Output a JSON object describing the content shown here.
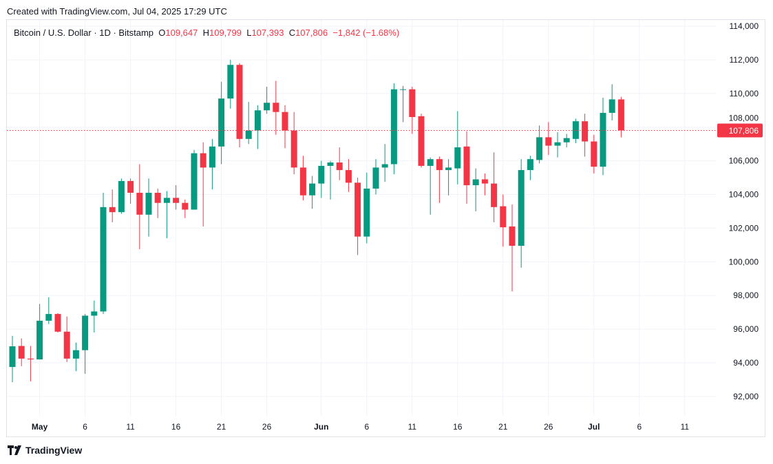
{
  "header": {
    "created": "Created with TradingView.com, Jul 04, 2025 17:29 UTC"
  },
  "legend": {
    "symbol": "Bitcoin / U.S. Dollar · 1D · Bitstamp",
    "o_label": "O",
    "o": "109,647",
    "h_label": "H",
    "h": "109,799",
    "l_label": "L",
    "l": "107,393",
    "c_label": "C",
    "c": "107,806",
    "change": "−1,842 (−1.68%)"
  },
  "footer": {
    "brand": "TradingView"
  },
  "colors": {
    "up": "#089981",
    "down": "#f23645",
    "grid": "#f0f3fa",
    "text": "#131722"
  },
  "chart_data": {
    "type": "candlestick",
    "title": "Bitcoin / U.S. Dollar · 1D · Bitstamp",
    "ylim": [
      91000,
      114500
    ],
    "grid": true,
    "y_ticks": [
      92000,
      94000,
      96000,
      98000,
      100000,
      102000,
      104000,
      106000,
      108000,
      110000,
      112000,
      114000
    ],
    "y_tick_labels": [
      "92,000",
      "94,000",
      "96,000",
      "98,000",
      "100,000",
      "102,000",
      "104,000",
      "106,000",
      "108,000",
      "110,000",
      "112,000",
      "114,000"
    ],
    "x_ticks": [
      {
        "label": "May",
        "date": "2025-05-01",
        "bold": true
      },
      {
        "label": "6",
        "date": "2025-05-06"
      },
      {
        "label": "11",
        "date": "2025-05-11"
      },
      {
        "label": "16",
        "date": "2025-05-16"
      },
      {
        "label": "21",
        "date": "2025-05-21"
      },
      {
        "label": "26",
        "date": "2025-05-26"
      },
      {
        "label": "Jun",
        "date": "2025-06-01",
        "bold": true
      },
      {
        "label": "6",
        "date": "2025-06-06"
      },
      {
        "label": "11",
        "date": "2025-06-11"
      },
      {
        "label": "16",
        "date": "2025-06-16"
      },
      {
        "label": "21",
        "date": "2025-06-21"
      },
      {
        "label": "26",
        "date": "2025-06-26"
      },
      {
        "label": "Jul",
        "date": "2025-07-01",
        "bold": true
      },
      {
        "label": "6",
        "date": "2025-07-06"
      },
      {
        "label": "11",
        "date": "2025-07-11"
      }
    ],
    "last_price": 107806,
    "last_price_label": "107,806",
    "candles": [
      {
        "d": "2025-04-28",
        "o": 93750,
        "h": 95600,
        "l": 92850,
        "c": 94980
      },
      {
        "d": "2025-04-29",
        "o": 95000,
        "h": 95450,
        "l": 93800,
        "c": 94250
      },
      {
        "d": "2025-04-30",
        "o": 94250,
        "h": 95000,
        "l": 92900,
        "c": 94200
      },
      {
        "d": "2025-05-01",
        "o": 94200,
        "h": 97500,
        "l": 94200,
        "c": 96500
      },
      {
        "d": "2025-05-02",
        "o": 96500,
        "h": 97900,
        "l": 96300,
        "c": 96900
      },
      {
        "d": "2025-05-03",
        "o": 96900,
        "h": 96950,
        "l": 95800,
        "c": 95850
      },
      {
        "d": "2025-05-04",
        "o": 95850,
        "h": 96750,
        "l": 94050,
        "c": 94250
      },
      {
        "d": "2025-05-05",
        "o": 94250,
        "h": 95200,
        "l": 93500,
        "c": 94750
      },
      {
        "d": "2025-05-06",
        "o": 94750,
        "h": 96900,
        "l": 93350,
        "c": 96800
      },
      {
        "d": "2025-05-07",
        "o": 96800,
        "h": 97700,
        "l": 95800,
        "c": 97050
      },
      {
        "d": "2025-05-08",
        "o": 97050,
        "h": 104100,
        "l": 96900,
        "c": 103250
      },
      {
        "d": "2025-05-09",
        "o": 103250,
        "h": 104300,
        "l": 102350,
        "c": 102950
      },
      {
        "d": "2025-05-10",
        "o": 102950,
        "h": 104950,
        "l": 102850,
        "c": 104800
      },
      {
        "d": "2025-05-11",
        "o": 104800,
        "h": 104950,
        "l": 103450,
        "c": 104100
      },
      {
        "d": "2025-05-12",
        "o": 104100,
        "h": 105800,
        "l": 100750,
        "c": 102800
      },
      {
        "d": "2025-05-13",
        "o": 102800,
        "h": 104950,
        "l": 101500,
        "c": 104100
      },
      {
        "d": "2025-05-14",
        "o": 104100,
        "h": 104350,
        "l": 102600,
        "c": 103500
      },
      {
        "d": "2025-05-15",
        "o": 103500,
        "h": 104200,
        "l": 101400,
        "c": 103800
      },
      {
        "d": "2025-05-16",
        "o": 103800,
        "h": 104550,
        "l": 103100,
        "c": 103500
      },
      {
        "d": "2025-05-17",
        "o": 103500,
        "h": 103700,
        "l": 102600,
        "c": 103100
      },
      {
        "d": "2025-05-18",
        "o": 103100,
        "h": 106650,
        "l": 103100,
        "c": 106450
      },
      {
        "d": "2025-05-19",
        "o": 106450,
        "h": 107100,
        "l": 102100,
        "c": 105600
      },
      {
        "d": "2025-05-20",
        "o": 105600,
        "h": 107300,
        "l": 104300,
        "c": 106850
      },
      {
        "d": "2025-05-21",
        "o": 106850,
        "h": 110700,
        "l": 105800,
        "c": 109700
      },
      {
        "d": "2025-05-22",
        "o": 109700,
        "h": 112000,
        "l": 109100,
        "c": 111700
      },
      {
        "d": "2025-05-23",
        "o": 111700,
        "h": 111800,
        "l": 106800,
        "c": 107300
      },
      {
        "d": "2025-05-24",
        "o": 107300,
        "h": 109500,
        "l": 107000,
        "c": 107800
      },
      {
        "d": "2025-05-25",
        "o": 107800,
        "h": 109300,
        "l": 106700,
        "c": 109000
      },
      {
        "d": "2025-05-26",
        "o": 109000,
        "h": 110400,
        "l": 108800,
        "c": 109450
      },
      {
        "d": "2025-05-27",
        "o": 109450,
        "h": 110750,
        "l": 107550,
        "c": 108900
      },
      {
        "d": "2025-05-28",
        "o": 108900,
        "h": 109300,
        "l": 106750,
        "c": 107800
      },
      {
        "d": "2025-05-29",
        "o": 107800,
        "h": 108900,
        "l": 105200,
        "c": 105600
      },
      {
        "d": "2025-05-30",
        "o": 105600,
        "h": 106300,
        "l": 103650,
        "c": 103950
      },
      {
        "d": "2025-05-31",
        "o": 103950,
        "h": 105100,
        "l": 103150,
        "c": 104650
      },
      {
        "d": "2025-06-01",
        "o": 104650,
        "h": 106000,
        "l": 103800,
        "c": 105700
      },
      {
        "d": "2025-06-02",
        "o": 105700,
        "h": 106000,
        "l": 103700,
        "c": 105900
      },
      {
        "d": "2025-06-03",
        "o": 105900,
        "h": 106800,
        "l": 104850,
        "c": 105450
      },
      {
        "d": "2025-06-04",
        "o": 105450,
        "h": 106100,
        "l": 104150,
        "c": 104700
      },
      {
        "d": "2025-06-05",
        "o": 104700,
        "h": 105000,
        "l": 100400,
        "c": 101500
      },
      {
        "d": "2025-06-06",
        "o": 101500,
        "h": 105300,
        "l": 101100,
        "c": 104350
      },
      {
        "d": "2025-06-07",
        "o": 104350,
        "h": 106100,
        "l": 104000,
        "c": 105600
      },
      {
        "d": "2025-06-08",
        "o": 105600,
        "h": 107000,
        "l": 104750,
        "c": 105800
      },
      {
        "d": "2025-06-09",
        "o": 105800,
        "h": 110600,
        "l": 105200,
        "c": 110250
      },
      {
        "d": "2025-06-10",
        "o": 110250,
        "h": 110450,
        "l": 108300,
        "c": 110250
      },
      {
        "d": "2025-06-11",
        "o": 110250,
        "h": 110400,
        "l": 107600,
        "c": 108600
      },
      {
        "d": "2025-06-12",
        "o": 108650,
        "h": 108800,
        "l": 105600,
        "c": 105700
      },
      {
        "d": "2025-06-13",
        "o": 105700,
        "h": 106200,
        "l": 102800,
        "c": 106100
      },
      {
        "d": "2025-06-14",
        "o": 106100,
        "h": 106250,
        "l": 103500,
        "c": 105450
      },
      {
        "d": "2025-06-15",
        "o": 105450,
        "h": 106100,
        "l": 103950,
        "c": 105600
      },
      {
        "d": "2025-06-16",
        "o": 105550,
        "h": 108950,
        "l": 104600,
        "c": 106800
      },
      {
        "d": "2025-06-17",
        "o": 106850,
        "h": 107750,
        "l": 103450,
        "c": 104550
      },
      {
        "d": "2025-06-18",
        "o": 104550,
        "h": 105550,
        "l": 103000,
        "c": 104900
      },
      {
        "d": "2025-06-19",
        "o": 104900,
        "h": 105250,
        "l": 103950,
        "c": 104650
      },
      {
        "d": "2025-06-20",
        "o": 104650,
        "h": 106500,
        "l": 102350,
        "c": 103250
      },
      {
        "d": "2025-06-21",
        "o": 103300,
        "h": 104000,
        "l": 100900,
        "c": 102050
      },
      {
        "d": "2025-06-22",
        "o": 102100,
        "h": 103400,
        "l": 98250,
        "c": 100950
      },
      {
        "d": "2025-06-23",
        "o": 100950,
        "h": 106100,
        "l": 99650,
        "c": 105450
      },
      {
        "d": "2025-06-24",
        "o": 105450,
        "h": 106300,
        "l": 104850,
        "c": 106100
      },
      {
        "d": "2025-06-25",
        "o": 106050,
        "h": 108100,
        "l": 105850,
        "c": 107400
      },
      {
        "d": "2025-06-26",
        "o": 107400,
        "h": 108300,
        "l": 106350,
        "c": 106900
      },
      {
        "d": "2025-06-27",
        "o": 106900,
        "h": 107700,
        "l": 106200,
        "c": 107100
      },
      {
        "d": "2025-06-28",
        "o": 107100,
        "h": 107600,
        "l": 106800,
        "c": 107350
      },
      {
        "d": "2025-06-29",
        "o": 107300,
        "h": 108500,
        "l": 107050,
        "c": 108350
      },
      {
        "d": "2025-06-30",
        "o": 108350,
        "h": 108800,
        "l": 106250,
        "c": 107150
      },
      {
        "d": "2025-07-01",
        "o": 107150,
        "h": 107550,
        "l": 105250,
        "c": 105650
      },
      {
        "d": "2025-07-02",
        "o": 105650,
        "h": 109750,
        "l": 105150,
        "c": 108850
      },
      {
        "d": "2025-07-03",
        "o": 108850,
        "h": 110550,
        "l": 108400,
        "c": 109650
      },
      {
        "d": "2025-07-04",
        "o": 109647,
        "h": 109799,
        "l": 107393,
        "c": 107806
      }
    ]
  }
}
